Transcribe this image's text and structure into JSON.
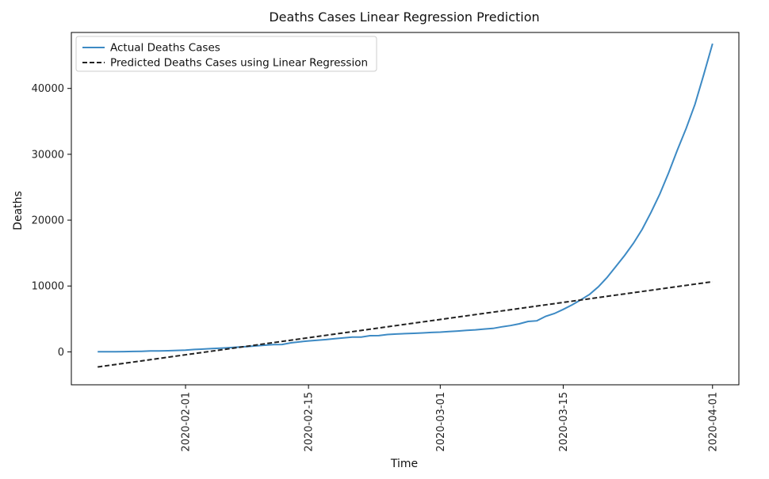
{
  "chart_data": {
    "type": "line",
    "title": "Deaths Cases Linear Regression Prediction",
    "xlabel": "Time",
    "ylabel": "Deaths",
    "xlim": [
      "2020-01-19",
      "2020-04-04"
    ],
    "ylim": [
      -5000,
      48500
    ],
    "xticks": [
      "2020-02-01",
      "2020-02-15",
      "2020-03-01",
      "2020-03-15",
      "2020-04-01"
    ],
    "yticks": [
      0,
      10000,
      20000,
      30000,
      40000
    ],
    "grid": false,
    "legend_position": "top-left",
    "series": [
      {
        "name": "Actual Deaths Cases",
        "color": "#3d8ac4",
        "style": "solid",
        "points": [
          [
            "2020-01-22",
            17
          ],
          [
            "2020-01-23",
            18
          ],
          [
            "2020-01-24",
            26
          ],
          [
            "2020-01-25",
            42
          ],
          [
            "2020-01-26",
            56
          ],
          [
            "2020-01-27",
            82
          ],
          [
            "2020-01-28",
            131
          ],
          [
            "2020-01-29",
            133
          ],
          [
            "2020-01-30",
            171
          ],
          [
            "2020-01-31",
            213
          ],
          [
            "2020-02-01",
            259
          ],
          [
            "2020-02-02",
            362
          ],
          [
            "2020-02-03",
            426
          ],
          [
            "2020-02-04",
            492
          ],
          [
            "2020-02-05",
            564
          ],
          [
            "2020-02-06",
            634
          ],
          [
            "2020-02-07",
            719
          ],
          [
            "2020-02-08",
            806
          ],
          [
            "2020-02-09",
            906
          ],
          [
            "2020-02-10",
            1013
          ],
          [
            "2020-02-11",
            1113
          ],
          [
            "2020-02-12",
            1118
          ],
          [
            "2020-02-13",
            1371
          ],
          [
            "2020-02-14",
            1523
          ],
          [
            "2020-02-15",
            1666
          ],
          [
            "2020-02-16",
            1770
          ],
          [
            "2020-02-17",
            1868
          ],
          [
            "2020-02-18",
            2007
          ],
          [
            "2020-02-19",
            2122
          ],
          [
            "2020-02-20",
            2247
          ],
          [
            "2020-02-21",
            2251
          ],
          [
            "2020-02-22",
            2458
          ],
          [
            "2020-02-23",
            2469
          ],
          [
            "2020-02-24",
            2629
          ],
          [
            "2020-02-25",
            2708
          ],
          [
            "2020-02-26",
            2770
          ],
          [
            "2020-02-27",
            2814
          ],
          [
            "2020-02-28",
            2872
          ],
          [
            "2020-02-29",
            2941
          ],
          [
            "2020-03-01",
            2996
          ],
          [
            "2020-03-02",
            3085
          ],
          [
            "2020-03-03",
            3160
          ],
          [
            "2020-03-04",
            3254
          ],
          [
            "2020-03-05",
            3348
          ],
          [
            "2020-03-06",
            3460
          ],
          [
            "2020-03-07",
            3558
          ],
          [
            "2020-03-08",
            3802
          ],
          [
            "2020-03-09",
            3988
          ],
          [
            "2020-03-10",
            4262
          ],
          [
            "2020-03-11",
            4615
          ],
          [
            "2020-03-12",
            4720
          ],
          [
            "2020-03-13",
            5404
          ],
          [
            "2020-03-14",
            5819
          ],
          [
            "2020-03-15",
            6440
          ],
          [
            "2020-03-16",
            7126
          ],
          [
            "2020-03-17",
            7905
          ],
          [
            "2020-03-18",
            8733
          ],
          [
            "2020-03-19",
            9867
          ],
          [
            "2020-03-20",
            11299
          ],
          [
            "2020-03-21",
            12973
          ],
          [
            "2020-03-22",
            14651
          ],
          [
            "2020-03-23",
            16505
          ],
          [
            "2020-03-24",
            18625
          ],
          [
            "2020-03-25",
            21181
          ],
          [
            "2020-03-26",
            23970
          ],
          [
            "2020-03-27",
            27198
          ],
          [
            "2020-03-28",
            30652
          ],
          [
            "2020-03-29",
            33925
          ],
          [
            "2020-03-30",
            37582
          ],
          [
            "2020-03-31",
            42107
          ],
          [
            "2020-04-01",
            46809
          ]
        ]
      },
      {
        "name": "Predicted Deaths Cases using Linear Regression",
        "color": "#222222",
        "style": "dashed",
        "points": [
          [
            "2020-01-22",
            -2300
          ],
          [
            "2020-04-01",
            10650
          ]
        ]
      }
    ]
  }
}
